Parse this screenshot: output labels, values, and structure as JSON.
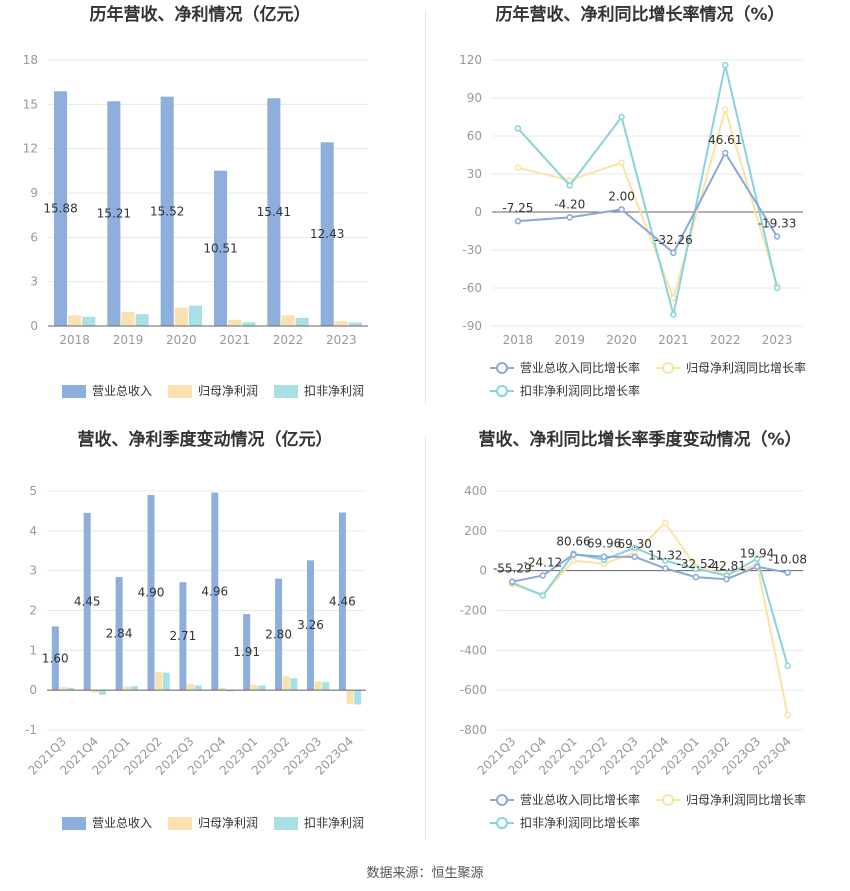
{
  "footer": "数据来源：恒生聚源",
  "colors": {
    "revenue": "#8eaedc",
    "net_profit": "#fbe0b0",
    "deducted_profit": "#a9e0e4",
    "rev_line": "#8aa8d8",
    "np_line": "#fde2a8",
    "dp_line": "#88d4dc",
    "grid": "#e8e8e8",
    "axis": "#999999"
  },
  "chart_data": [
    {
      "id": "annual_bar",
      "type": "bar",
      "title": "历年营收、净利情况（亿元）",
      "categories": [
        "2018",
        "2019",
        "2020",
        "2021",
        "2022",
        "2023"
      ],
      "series": [
        {
          "name": "营业总收入",
          "values": [
            15.88,
            15.21,
            15.52,
            10.51,
            15.41,
            12.43
          ],
          "labels": [
            "15.88",
            "15.21",
            "15.52",
            "10.51",
            "15.41",
            "12.43"
          ]
        },
        {
          "name": "归母净利润",
          "values": [
            0.72,
            0.95,
            1.25,
            0.42,
            0.72,
            0.33
          ]
        },
        {
          "name": "扣非净利润",
          "values": [
            0.62,
            0.8,
            1.38,
            0.25,
            0.55,
            0.24
          ]
        }
      ],
      "yticks": [
        "0",
        "3",
        "6",
        "9",
        "12",
        "15",
        "18"
      ],
      "ylim": [
        0,
        18
      ],
      "grid": true,
      "legend": "bottom"
    },
    {
      "id": "annual_growth",
      "type": "line",
      "title": "历年营收、净利同比增长率情况（%）",
      "categories": [
        "2018",
        "2019",
        "2020",
        "2021",
        "2022",
        "2023"
      ],
      "series": [
        {
          "name": "营业总收入同比增长率",
          "values": [
            -7.25,
            -4.2,
            2.0,
            -32.26,
            46.61,
            -19.33
          ],
          "labels": [
            "-7.25",
            "-4.20",
            "2.00",
            "-32.26",
            "46.61",
            "-19.33"
          ]
        },
        {
          "name": "归母净利润同比增长率",
          "values": [
            35,
            25,
            39,
            -68,
            81,
            -58
          ]
        },
        {
          "name": "扣非净利润同比增长率",
          "values": [
            66,
            21,
            75,
            -81,
            116,
            -60
          ]
        }
      ],
      "yticks": [
        "-90",
        "-60",
        "-30",
        "0",
        "30",
        "60",
        "90",
        "120"
      ],
      "ylim": [
        -90,
        120
      ],
      "grid": true,
      "legend": "bottom"
    },
    {
      "id": "quarterly_bar",
      "type": "bar",
      "title": "营收、净利季度变动情况（亿元）",
      "categories": [
        "2021Q3",
        "2021Q4",
        "2022Q1",
        "2022Q2",
        "2022Q3",
        "2022Q4",
        "2023Q1",
        "2023Q2",
        "2023Q3",
        "2023Q4"
      ],
      "series": [
        {
          "name": "营业总收入",
          "values": [
            1.6,
            4.45,
            2.84,
            4.9,
            2.71,
            4.96,
            1.91,
            2.8,
            3.26,
            4.46
          ],
          "labels": [
            "1.60",
            "4.45",
            "2.84",
            "4.90",
            "2.71",
            "4.96",
            "1.91",
            "2.80",
            "3.26",
            "4.46"
          ]
        },
        {
          "name": "归母净利润",
          "values": [
            0.08,
            -0.06,
            0.09,
            0.46,
            0.15,
            0.06,
            0.13,
            0.35,
            0.22,
            -0.35
          ]
        },
        {
          "name": "扣非净利润",
          "values": [
            0.06,
            -0.12,
            0.1,
            0.44,
            0.12,
            -0.03,
            0.12,
            0.3,
            0.21,
            -0.36
          ]
        }
      ],
      "yticks": [
        "-1",
        "0",
        "1",
        "2",
        "3",
        "4",
        "5"
      ],
      "ylim": [
        -1,
        5
      ],
      "grid": true,
      "legend": "bottom"
    },
    {
      "id": "quarterly_growth",
      "type": "line",
      "title": "营收、净利同比增长率季度变动情况（%）",
      "categories": [
        "2021Q3",
        "2021Q4",
        "2022Q1",
        "2022Q2",
        "2022Q3",
        "2022Q4",
        "2023Q1",
        "2023Q2",
        "2023Q3",
        "2023Q4"
      ],
      "series": [
        {
          "name": "营业总收入同比增长率",
          "values": [
            -55.29,
            -24.12,
            80.66,
            69.96,
            69.3,
            11.32,
            -32.52,
            -42.81,
            19.94,
            -10.08
          ],
          "labels": [
            "-55.29",
            "-24.12",
            "80.66",
            "69.96",
            "69.30",
            "11.32",
            "-32.52",
            "-42.81",
            "19.94",
            "-10.08"
          ]
        },
        {
          "name": "归母净利润同比增长率",
          "values": [
            -70,
            -120,
            50,
            35,
            90,
            240,
            20,
            -20,
            30,
            -725
          ]
        },
        {
          "name": "扣非净利润同比增长率",
          "values": [
            -60,
            -125,
            85,
            55,
            115,
            50,
            10,
            -25,
            60,
            -478
          ]
        }
      ],
      "yticks": [
        "-800",
        "-600",
        "-400",
        "-200",
        "0",
        "200",
        "400"
      ],
      "ylim": [
        -800,
        400
      ],
      "grid": true,
      "legend": "bottom"
    }
  ]
}
